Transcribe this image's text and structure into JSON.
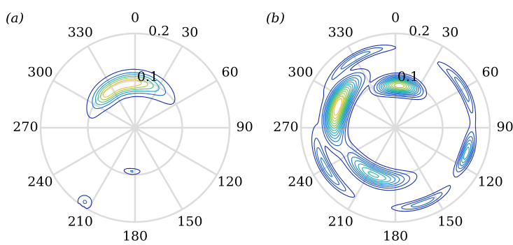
{
  "chart_data": [
    {
      "type": "polar-contour",
      "panel_label": "(a)",
      "theta_tick_labels": [
        "0",
        "30",
        "60",
        "90",
        "120",
        "150",
        "180",
        "210",
        "240",
        "270",
        "300",
        "330"
      ],
      "theta_zero_location": "top",
      "theta_direction": "clockwise",
      "r_tick_labels": [
        "0.1",
        "0.2"
      ],
      "r_ticks": [
        0.1,
        0.2
      ],
      "rlim": [
        0,
        0.2
      ],
      "grid": true,
      "colormap": [
        "#1a2fb0",
        "#1f7fd8",
        "#20b5b0",
        "#8cc84a",
        "#e8c22a"
      ],
      "blobs": [
        {
          "theta_deg": 350,
          "r": 0.095,
          "sigma_theta_deg": 30,
          "sigma_r": 0.013,
          "peak": 1.0
        },
        {
          "theta_deg": 318,
          "r": 0.092,
          "sigma_theta_deg": 10,
          "sigma_r": 0.012,
          "peak": 0.35
        },
        {
          "theta_deg": 184,
          "r": 0.093,
          "sigma_theta_deg": 7,
          "sigma_r": 0.004,
          "peak": 0.25
        },
        {
          "theta_deg": 214,
          "r": 0.19,
          "sigma_theta_deg": 3,
          "sigma_r": 0.009,
          "peak": 0.25
        }
      ],
      "contour_levels": 6
    },
    {
      "type": "polar-contour",
      "panel_label": "(b)",
      "theta_tick_labels": [
        "0",
        "30",
        "60",
        "90",
        "120",
        "150",
        "180",
        "210",
        "240",
        "270",
        "300",
        "330"
      ],
      "theta_zero_location": "top",
      "theta_direction": "clockwise",
      "r_tick_labels": [
        "0.1",
        "0.2"
      ],
      "r_ticks": [
        0.1,
        0.2
      ],
      "rlim": [
        0,
        0.2
      ],
      "grid": true,
      "colormap": [
        "#1a2fb0",
        "#1f7fd8",
        "#20b5b0",
        "#8cc84a",
        "#e8c22a"
      ],
      "blobs": [
        {
          "theta_deg": 5,
          "r": 0.09,
          "sigma_theta_deg": 18,
          "sigma_r": 0.012,
          "peak": 0.85
        },
        {
          "theta_deg": 290,
          "r": 0.13,
          "sigma_theta_deg": 20,
          "sigma_r": 0.014,
          "peak": 1.0
        },
        {
          "theta_deg": 205,
          "r": 0.11,
          "sigma_theta_deg": 25,
          "sigma_r": 0.013,
          "peak": 0.55
        },
        {
          "theta_deg": 110,
          "r": 0.16,
          "sigma_theta_deg": 10,
          "sigma_r": 0.008,
          "peak": 0.45
        },
        {
          "theta_deg": 240,
          "r": 0.17,
          "sigma_theta_deg": 18,
          "sigma_r": 0.008,
          "peak": 0.3
        },
        {
          "theta_deg": 60,
          "r": 0.165,
          "sigma_theta_deg": 18,
          "sigma_r": 0.007,
          "peak": 0.25
        },
        {
          "theta_deg": 330,
          "r": 0.17,
          "sigma_theta_deg": 20,
          "sigma_r": 0.007,
          "peak": 0.25
        },
        {
          "theta_deg": 160,
          "r": 0.17,
          "sigma_theta_deg": 15,
          "sigma_r": 0.007,
          "peak": 0.25
        }
      ],
      "contour_levels": 14
    }
  ]
}
